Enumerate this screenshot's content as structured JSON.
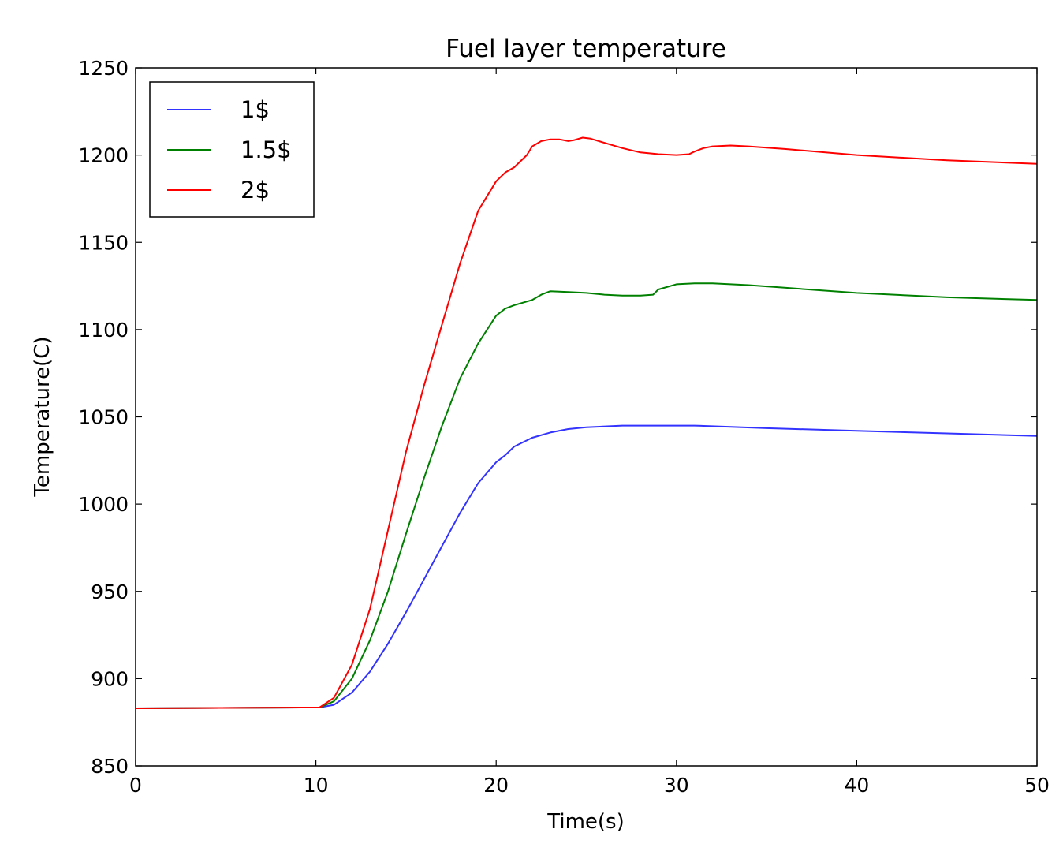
{
  "chart_data": {
    "type": "line",
    "title": "Fuel layer temperature",
    "xlabel": "Time(s)",
    "ylabel": "Temperature(C)",
    "xlim": [
      0,
      50
    ],
    "ylim": [
      850,
      1250
    ],
    "xticks": [
      0,
      10,
      20,
      30,
      40,
      50
    ],
    "yticks": [
      850,
      900,
      950,
      1000,
      1050,
      1100,
      1150,
      1200,
      1250
    ],
    "xtick_labels": [
      "0",
      "10",
      "20",
      "30",
      "40",
      "50"
    ],
    "ytick_labels": [
      "850",
      "900",
      "950",
      "1000",
      "1050",
      "1100",
      "1150",
      "1200",
      "1250"
    ],
    "grid": false,
    "legend_position": "upper-left",
    "series": [
      {
        "name": "1$",
        "color": "#3333ff",
        "x": [
          0,
          10.2,
          11,
          12,
          13,
          14,
          15,
          16,
          17,
          18,
          19,
          20,
          20.5,
          21,
          22,
          23,
          24,
          25,
          27,
          29,
          31,
          35,
          40,
          45,
          50
        ],
        "y": [
          883,
          883.5,
          885,
          892,
          904,
          920,
          938,
          957,
          976,
          995,
          1012,
          1024,
          1028,
          1033,
          1038,
          1041,
          1043,
          1044,
          1045,
          1045,
          1045,
          1043.5,
          1042,
          1040.5,
          1039
        ]
      },
      {
        "name": "1.5$",
        "color": "#008000",
        "x": [
          0,
          10.2,
          11,
          12,
          13,
          14,
          15,
          16,
          17,
          18,
          19,
          20,
          20.5,
          21,
          22,
          22.5,
          23,
          24,
          25,
          26,
          27,
          28,
          28.7,
          29,
          30,
          31,
          32,
          34,
          36,
          40,
          45,
          50
        ],
        "y": [
          883,
          883.5,
          887,
          900,
          922,
          950,
          983,
          1015,
          1045,
          1072,
          1092,
          1108,
          1112,
          1114,
          1117,
          1120,
          1122,
          1121.5,
          1121,
          1120,
          1119.5,
          1119.5,
          1120,
          1123,
          1126,
          1126.5,
          1126.5,
          1125.5,
          1124,
          1121,
          1118.5,
          1117
        ]
      },
      {
        "name": "2$",
        "color": "#ff0000",
        "x": [
          0,
          10.2,
          11,
          12,
          13,
          14,
          15,
          16,
          17,
          18,
          19,
          20,
          20.5,
          21,
          21.7,
          22,
          22.5,
          23,
          23.5,
          24,
          24.3,
          24.8,
          25.2,
          26,
          27,
          28,
          29,
          30,
          30.7,
          31,
          31.5,
          32,
          33,
          34,
          36,
          40,
          45,
          50
        ],
        "y": [
          883,
          883.5,
          889,
          908,
          940,
          985,
          1030,
          1068,
          1103,
          1138,
          1168,
          1185,
          1190,
          1193,
          1200,
          1205,
          1208,
          1209,
          1209,
          1208,
          1208.5,
          1210,
          1209.5,
          1207,
          1204,
          1201.5,
          1200.5,
          1200,
          1200.5,
          1202,
          1204,
          1205,
          1205.5,
          1205,
          1203.5,
          1200,
          1197,
          1195
        ]
      }
    ]
  }
}
